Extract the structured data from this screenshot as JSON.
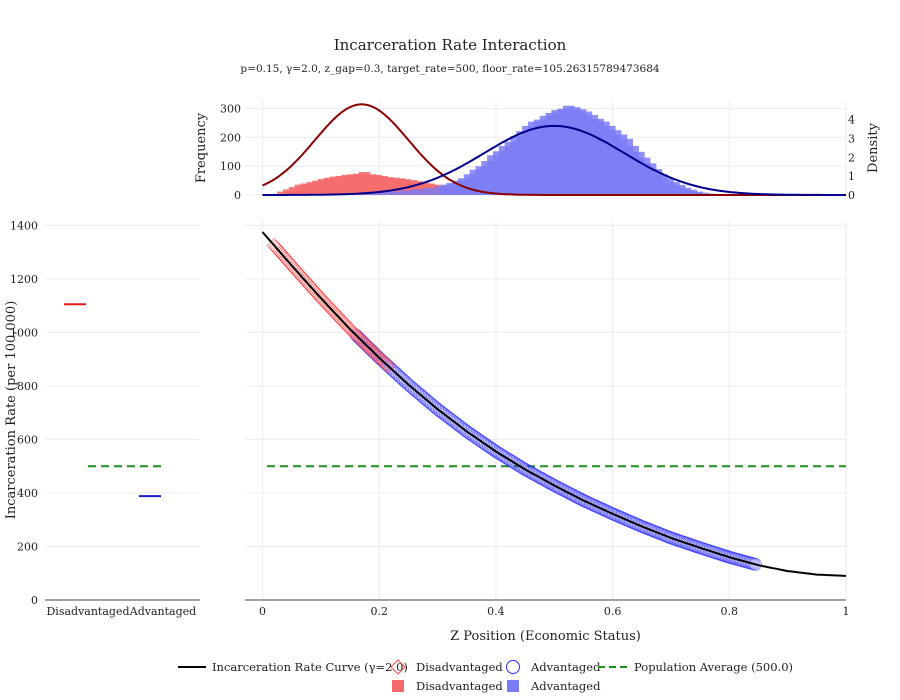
{
  "chart_data": {
    "type": "composite",
    "title": "Incarceration Rate Interaction",
    "subtitle": "p=0.15, γ=2.0, z_gap=0.3, target_rate=500, floor_rate=105.26315789473684",
    "histogram_panel": {
      "type": "bar",
      "ylabel_left": "Frequency",
      "ylabel_right": "Density",
      "y_ticks_left": [
        0,
        100,
        200,
        300
      ],
      "y_ticks_right": [
        0,
        1,
        2,
        3,
        4
      ],
      "series": [
        {
          "name": "Disadvantaged",
          "color": "#f46a6a",
          "bin_width": 0.01,
          "bins": [
            {
              "x": 0.03,
              "y": 12
            },
            {
              "x": 0.04,
              "y": 20
            },
            {
              "x": 0.05,
              "y": 28
            },
            {
              "x": 0.06,
              "y": 36
            },
            {
              "x": 0.07,
              "y": 40
            },
            {
              "x": 0.08,
              "y": 45
            },
            {
              "x": 0.09,
              "y": 50
            },
            {
              "x": 0.1,
              "y": 56
            },
            {
              "x": 0.11,
              "y": 60
            },
            {
              "x": 0.12,
              "y": 64
            },
            {
              "x": 0.13,
              "y": 66
            },
            {
              "x": 0.14,
              "y": 70
            },
            {
              "x": 0.15,
              "y": 72
            },
            {
              "x": 0.16,
              "y": 74
            },
            {
              "x": 0.17,
              "y": 80
            },
            {
              "x": 0.18,
              "y": 72
            },
            {
              "x": 0.19,
              "y": 70
            },
            {
              "x": 0.2,
              "y": 66
            },
            {
              "x": 0.21,
              "y": 62
            },
            {
              "x": 0.22,
              "y": 60
            },
            {
              "x": 0.23,
              "y": 58
            },
            {
              "x": 0.24,
              "y": 55
            },
            {
              "x": 0.25,
              "y": 52
            },
            {
              "x": 0.26,
              "y": 48
            },
            {
              "x": 0.27,
              "y": 45
            },
            {
              "x": 0.28,
              "y": 40
            },
            {
              "x": 0.29,
              "y": 36
            },
            {
              "x": 0.3,
              "y": 32
            },
            {
              "x": 0.31,
              "y": 28
            },
            {
              "x": 0.32,
              "y": 25
            },
            {
              "x": 0.33,
              "y": 22
            },
            {
              "x": 0.34,
              "y": 20
            },
            {
              "x": 0.35,
              "y": 18
            },
            {
              "x": 0.36,
              "y": 15
            },
            {
              "x": 0.37,
              "y": 12
            },
            {
              "x": 0.38,
              "y": 10
            },
            {
              "x": 0.39,
              "y": 8
            },
            {
              "x": 0.4,
              "y": 6
            },
            {
              "x": 0.41,
              "y": 5
            },
            {
              "x": 0.42,
              "y": 4
            }
          ]
        },
        {
          "name": "Advantaged",
          "color": "#7b7bf6",
          "bin_width": 0.01,
          "bins": [
            {
              "x": 0.14,
              "y": 3
            },
            {
              "x": 0.16,
              "y": 5
            },
            {
              "x": 0.18,
              "y": 8
            },
            {
              "x": 0.2,
              "y": 10
            },
            {
              "x": 0.22,
              "y": 12
            },
            {
              "x": 0.24,
              "y": 16
            },
            {
              "x": 0.26,
              "y": 20
            },
            {
              "x": 0.28,
              "y": 24
            },
            {
              "x": 0.3,
              "y": 30
            },
            {
              "x": 0.31,
              "y": 36
            },
            {
              "x": 0.32,
              "y": 42
            },
            {
              "x": 0.33,
              "y": 50
            },
            {
              "x": 0.34,
              "y": 58
            },
            {
              "x": 0.35,
              "y": 72
            },
            {
              "x": 0.36,
              "y": 88
            },
            {
              "x": 0.37,
              "y": 100
            },
            {
              "x": 0.38,
              "y": 118
            },
            {
              "x": 0.39,
              "y": 138
            },
            {
              "x": 0.4,
              "y": 152
            },
            {
              "x": 0.41,
              "y": 170
            },
            {
              "x": 0.42,
              "y": 185
            },
            {
              "x": 0.43,
              "y": 205
            },
            {
              "x": 0.44,
              "y": 222
            },
            {
              "x": 0.45,
              "y": 240
            },
            {
              "x": 0.46,
              "y": 255
            },
            {
              "x": 0.47,
              "y": 262
            },
            {
              "x": 0.48,
              "y": 275
            },
            {
              "x": 0.49,
              "y": 285
            },
            {
              "x": 0.5,
              "y": 295
            },
            {
              "x": 0.51,
              "y": 300
            },
            {
              "x": 0.52,
              "y": 310
            },
            {
              "x": 0.53,
              "y": 305
            },
            {
              "x": 0.54,
              "y": 298
            },
            {
              "x": 0.55,
              "y": 290
            },
            {
              "x": 0.56,
              "y": 278
            },
            {
              "x": 0.57,
              "y": 265
            },
            {
              "x": 0.58,
              "y": 255
            },
            {
              "x": 0.59,
              "y": 240
            },
            {
              "x": 0.6,
              "y": 225
            },
            {
              "x": 0.61,
              "y": 210
            },
            {
              "x": 0.62,
              "y": 195
            },
            {
              "x": 0.63,
              "y": 170
            },
            {
              "x": 0.64,
              "y": 150
            },
            {
              "x": 0.65,
              "y": 130
            },
            {
              "x": 0.66,
              "y": 110
            },
            {
              "x": 0.67,
              "y": 90
            },
            {
              "x": 0.68,
              "y": 72
            },
            {
              "x": 0.69,
              "y": 58
            },
            {
              "x": 0.7,
              "y": 45
            },
            {
              "x": 0.71,
              "y": 35
            },
            {
              "x": 0.72,
              "y": 25
            },
            {
              "x": 0.73,
              "y": 18
            },
            {
              "x": 0.74,
              "y": 12
            },
            {
              "x": 0.75,
              "y": 8
            },
            {
              "x": 0.76,
              "y": 5
            },
            {
              "x": 0.77,
              "y": 3
            },
            {
              "x": 0.78,
              "y": 2
            },
            {
              "x": 0.79,
              "y": 1
            }
          ]
        }
      ],
      "density_curves": [
        {
          "name": "Disadvantaged",
          "color": "#8b0000",
          "mean": 0.17,
          "sd": 0.08,
          "peak_freq": 315
        },
        {
          "name": "Advantaged",
          "color": "#00008b",
          "mean": 0.5,
          "sd": 0.12,
          "peak_freq": 240
        }
      ]
    },
    "main_panel": {
      "type": "scatter",
      "xlabel": "Z Position (Economic Status)",
      "ylabel": "Incarceration Rate (per 100,000)",
      "xlim": [
        -0.03,
        1.0
      ],
      "ylim": [
        0,
        1420
      ],
      "x_ticks": [
        0,
        0.2,
        0.4,
        0.6,
        0.8,
        1
      ],
      "x_tick_labels": [
        "0",
        "0.2",
        "0.4",
        "0.6",
        "0.8",
        "1"
      ],
      "y_ticks": [
        0,
        200,
        400,
        600,
        800,
        1000,
        1200,
        1400
      ],
      "curve": {
        "name": "Incarceration Rate Curve (γ=2.0)",
        "color": "#000000",
        "x": [
          0.0,
          0.05,
          0.1,
          0.15,
          0.2,
          0.25,
          0.3,
          0.35,
          0.4,
          0.45,
          0.5,
          0.55,
          0.6,
          0.65,
          0.7,
          0.75,
          0.8,
          0.85,
          0.9,
          0.95,
          1.0
        ],
        "y": [
          1375,
          1250,
          1128,
          1012,
          905,
          805,
          713,
          630,
          555,
          488,
          428,
          372,
          322,
          275,
          232,
          195,
          160,
          130,
          108,
          95,
          90
        ]
      },
      "scatter_series": [
        {
          "name": "Disadvantaged",
          "color": "#ff4b4b",
          "marker": "diamond-open",
          "x_range": [
            0.02,
            0.215
          ]
        },
        {
          "name": "Advantaged",
          "color": "#2a2aff",
          "marker": "circle-open",
          "x_range": [
            0.16,
            0.845
          ]
        }
      ],
      "reference_line": {
        "name": "Population Average (500.0)",
        "y": 500,
        "color": "#1f8f1f",
        "style": "dashed"
      }
    },
    "group_panel": {
      "type": "bar",
      "categories": [
        "Disadvantaged",
        "Advantaged"
      ],
      "mean_rates": [
        {
          "name": "Disadvantaged",
          "value": 1105,
          "color": "#e31a1a"
        },
        {
          "name": "Advantaged",
          "value": 388,
          "color": "#1a1ad0"
        }
      ],
      "population_average": 500
    },
    "legend": {
      "placement": "bottom",
      "items": [
        {
          "label": "Incarceration Rate Curve (γ=2.0)",
          "kind": "line",
          "color": "#000000"
        },
        {
          "label": "Disadvantaged",
          "kind": "diamond-open",
          "color": "#ff4b4b"
        },
        {
          "label": "Advantaged",
          "kind": "circle-open",
          "color": "#2a2aff"
        },
        {
          "label": "Population Average (500.0)",
          "kind": "dash",
          "color": "#1f8f1f"
        },
        {
          "label": "Disadvantaged",
          "kind": "square",
          "color": "#f46a6a"
        },
        {
          "label": "Advantaged",
          "kind": "square",
          "color": "#7b7bf6"
        }
      ]
    }
  }
}
